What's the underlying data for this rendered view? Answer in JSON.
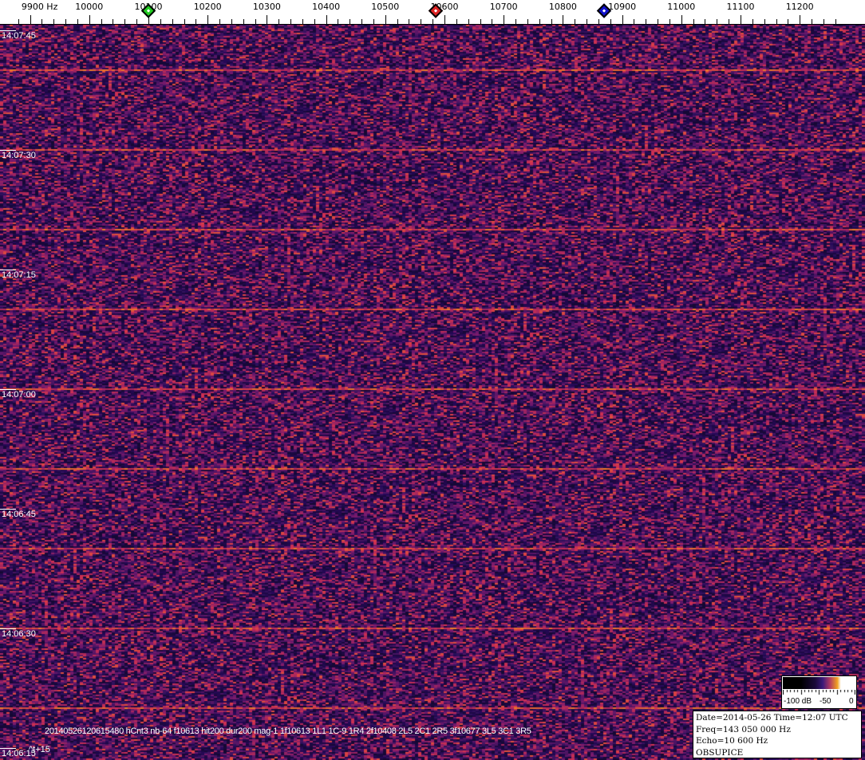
{
  "frequency_axis": {
    "unit_label": "9900 Hz",
    "labels": [
      {
        "hz": 9900,
        "text": "9900 Hz"
      },
      {
        "hz": 10000,
        "text": "10000"
      },
      {
        "hz": 10100,
        "text": "10100"
      },
      {
        "hz": 10200,
        "text": "10200"
      },
      {
        "hz": 10300,
        "text": "10300"
      },
      {
        "hz": 10400,
        "text": "10400"
      },
      {
        "hz": 10500,
        "text": "10500"
      },
      {
        "hz": 10600,
        "text": "10600"
      },
      {
        "hz": 10700,
        "text": "10700"
      },
      {
        "hz": 10800,
        "text": "10800"
      },
      {
        "hz": 10900,
        "text": "10900"
      },
      {
        "hz": 11000,
        "text": "11000"
      },
      {
        "hz": 11100,
        "text": "11100"
      },
      {
        "hz": 11200,
        "text": "11200"
      }
    ],
    "markers": [
      {
        "name": "green-marker",
        "hz": 10100,
        "color": "#22cc22"
      },
      {
        "name": "red-marker",
        "hz": 10585,
        "color": "#dd2222"
      },
      {
        "name": "blue-marker",
        "hz": 10869,
        "color": "#1111cc"
      }
    ]
  },
  "time_labels": [
    "14:07:45",
    "14:07:30",
    "14:07:15",
    "14:07:00",
    "14:06:45",
    "14:06:30",
    "14:06:15"
  ],
  "waterfall": {
    "colors": {
      "background": "#3a1670",
      "dark": "#140a3a",
      "mid": "#7a2a80",
      "hot": "#f0a020"
    }
  },
  "overlay": {
    "info_line": "20140526120615480 hCnt3 nb-64 f10613 hit200 dur200 mag-1 1f10613 1L1 1C-9 1R4 2f10408 2L5 2C1 2R5 3f10677 3L5 3C1 3R5",
    "time_step": "^t+15"
  },
  "color_bar": {
    "labels": [
      "-100 dB",
      "-50",
      "0"
    ]
  },
  "info_box": {
    "line1": "Date=2014-05-26 Time=12:07 UTC",
    "line2": "Freq=143 050 000 Hz",
    "line3": "Echo=10 600 Hz",
    "line4": "OBSUPICE"
  }
}
